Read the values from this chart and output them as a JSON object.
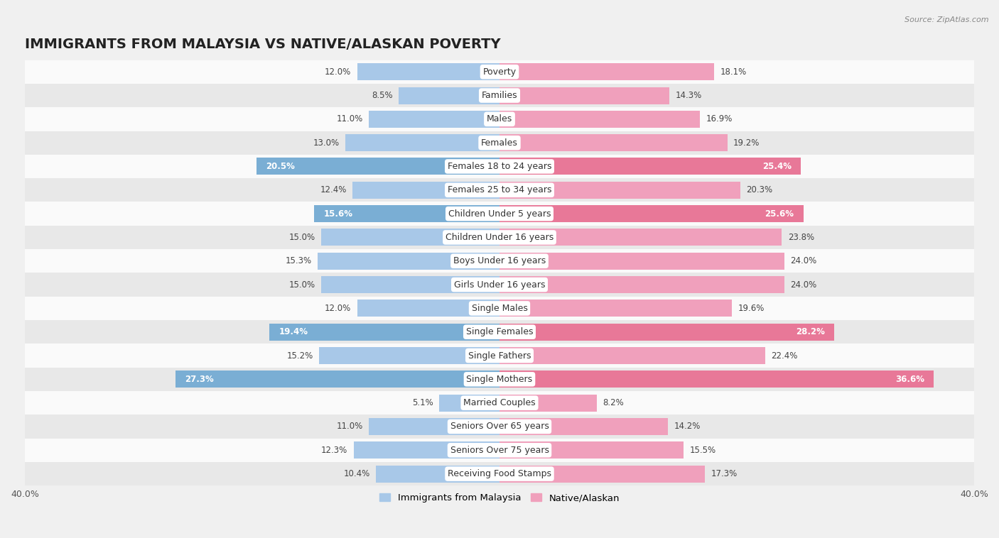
{
  "title": "IMMIGRANTS FROM MALAYSIA VS NATIVE/ALASKAN POVERTY",
  "source": "Source: ZipAtlas.com",
  "categories": [
    "Poverty",
    "Families",
    "Males",
    "Females",
    "Females 18 to 24 years",
    "Females 25 to 34 years",
    "Children Under 5 years",
    "Children Under 16 years",
    "Boys Under 16 years",
    "Girls Under 16 years",
    "Single Males",
    "Single Females",
    "Single Fathers",
    "Single Mothers",
    "Married Couples",
    "Seniors Over 65 years",
    "Seniors Over 75 years",
    "Receiving Food Stamps"
  ],
  "malaysia_values": [
    12.0,
    8.5,
    11.0,
    13.0,
    20.5,
    12.4,
    15.6,
    15.0,
    15.3,
    15.0,
    12.0,
    19.4,
    15.2,
    27.3,
    5.1,
    11.0,
    12.3,
    10.4
  ],
  "native_values": [
    18.1,
    14.3,
    16.9,
    19.2,
    25.4,
    20.3,
    25.6,
    23.8,
    24.0,
    24.0,
    19.6,
    28.2,
    22.4,
    36.6,
    8.2,
    14.2,
    15.5,
    17.3
  ],
  "malaysia_color": "#a8c8e8",
  "native_color": "#f0a0bc",
  "malaysia_highlight_color": "#7aaed4",
  "native_highlight_color": "#e87898",
  "highlight_rows": [
    4,
    6,
    11,
    13
  ],
  "xlim": 40.0,
  "bg_color": "#f0f0f0",
  "row_color_light": "#fafafa",
  "row_color_dark": "#e8e8e8",
  "bar_height": 0.72,
  "legend_labels": [
    "Immigrants from Malaysia",
    "Native/Alaskan"
  ],
  "title_fontsize": 14,
  "label_fontsize": 9,
  "value_fontsize": 8.5
}
